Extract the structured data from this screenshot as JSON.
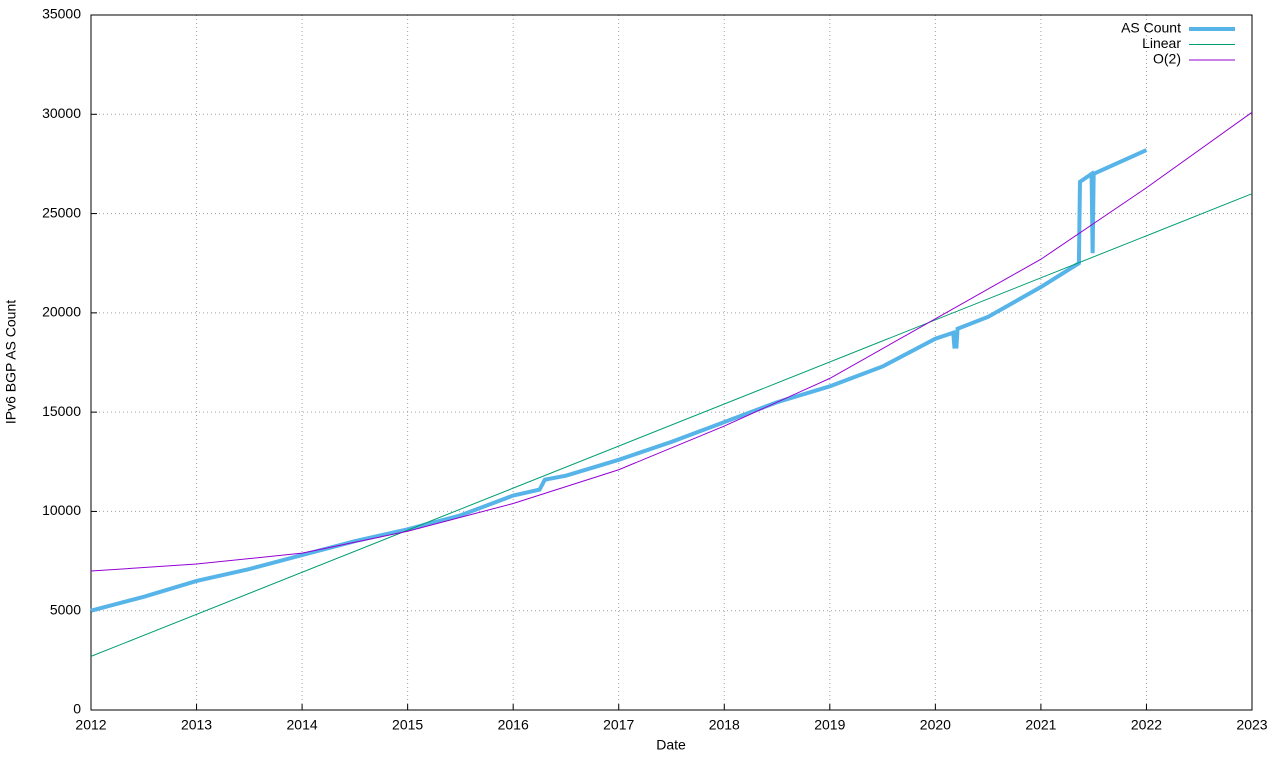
{
  "chart_data": {
    "type": "line",
    "xlabel": "Date",
    "ylabel": "IPv6 BGP AS Count",
    "xlim": [
      2012,
      2023
    ],
    "xticks": [
      2012,
      2013,
      2014,
      2015,
      2016,
      2017,
      2018,
      2019,
      2020,
      2021,
      2022,
      2023
    ],
    "ylim": [
      0,
      35000
    ],
    "yticks": [
      0,
      5000,
      10000,
      15000,
      20000,
      25000,
      30000,
      35000
    ],
    "grid": true,
    "legend": "top-right",
    "series": [
      {
        "name": "AS Count",
        "color": "#56b4e9",
        "x": [
          2012.0,
          2012.5,
          2013.0,
          2013.5,
          2014.0,
          2014.5,
          2015.0,
          2015.5,
          2016.0,
          2016.25,
          2016.3,
          2016.5,
          2017.0,
          2017.5,
          2018.0,
          2018.5,
          2019.0,
          2019.5,
          2020.0,
          2020.17,
          2020.18,
          2020.2,
          2020.21,
          2020.5,
          2021.0,
          2021.36,
          2021.37,
          2021.48,
          2021.49,
          2021.5,
          2022.0
        ],
        "values": [
          5000,
          5700,
          6500,
          7100,
          7800,
          8500,
          9100,
          9800,
          10800,
          11100,
          11600,
          11800,
          12600,
          13500,
          14500,
          15500,
          16300,
          17300,
          18700,
          19000,
          18300,
          18300,
          19200,
          19800,
          21300,
          22500,
          26600,
          27000,
          23000,
          27000,
          28200
        ]
      },
      {
        "name": "Linear",
        "color": "#009e73",
        "x": [
          2012,
          2023
        ],
        "values": [
          2700,
          26000
        ]
      },
      {
        "name": "O(2)",
        "color": "#9400d3",
        "x": [
          2012,
          2013,
          2014,
          2015,
          2016,
          2017,
          2018,
          2019,
          2020,
          2021,
          2022,
          2023
        ],
        "values": [
          7000,
          7350,
          7900,
          9000,
          10400,
          12100,
          14300,
          16700,
          19700,
          22700,
          26300,
          30100
        ]
      }
    ]
  }
}
